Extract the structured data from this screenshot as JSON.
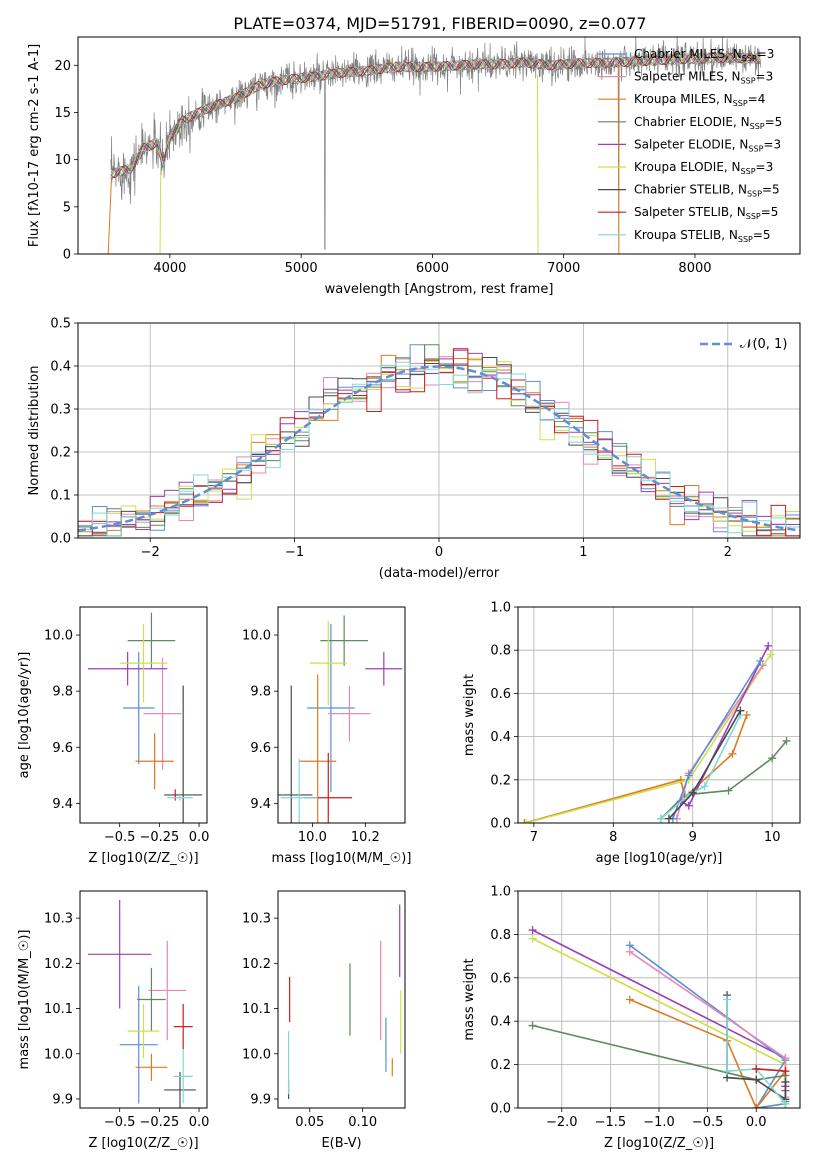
{
  "figure": {
    "title": "PLATE=0374, MJD=51791, FIBERID=0090, z=0.077"
  },
  "colors": {
    "Chabrier MILES": "#5b8fd6",
    "Salpeter MILES": "#e58ab8",
    "Kroupa MILES": "#e07a1f",
    "Chabrier ELODIE": "#5e8a5e",
    "Salpeter ELODIE": "#9b3fb5",
    "Kroupa ELODIE": "#cde04a",
    "Chabrier STELIB": "#4a4a4a",
    "Salpeter STELIB": "#cc1d1d",
    "Kroupa STELIB": "#7fd8d8"
  },
  "chart_data": [
    {
      "id": "spectrum",
      "type": "line",
      "xlabel": "wavelength [Angstrom, rest frame]",
      "ylabel": "Flux [f$_\\lambda$10$^{-17}$ erg cm$^{-2}$ s$^{-1}$ A$^{-1}$]",
      "xlim": [
        3300,
        8800
      ],
      "ylim": [
        0,
        23
      ],
      "xticks": [
        "4000",
        "5000",
        "6000",
        "7000",
        "8000"
      ],
      "yticks": [
        "0",
        "5",
        "10",
        "15",
        "20"
      ],
      "legend_position": "top-right",
      "legend": [
        {
          "label": "Chabrier MILES, N",
          "sub": "SSP",
          "eq": "=3",
          "color": "#5b8fd6"
        },
        {
          "label": "Salpeter MILES, N",
          "sub": "SSP",
          "eq": "=3",
          "color": "#e58ab8"
        },
        {
          "label": "Kroupa MILES, N",
          "sub": "SSP",
          "eq": "=4",
          "color": "#e07a1f"
        },
        {
          "label": "Chabrier ELODIE, N",
          "sub": "SSP",
          "eq": "=5",
          "color": "#5e8a5e"
        },
        {
          "label": "Salpeter ELODIE, N",
          "sub": "SSP",
          "eq": "=3",
          "color": "#9b3fb5"
        },
        {
          "label": "Kroupa ELODIE, N",
          "sub": "SSP",
          "eq": "=3",
          "color": "#cde04a"
        },
        {
          "label": "Chabrier STELIB, N",
          "sub": "SSP",
          "eq": "=5",
          "color": "#4a4a4a"
        },
        {
          "label": "Salpeter STELIB, N",
          "sub": "SSP",
          "eq": "=5",
          "color": "#cc1d1d"
        },
        {
          "label": "Kroupa STELIB, N",
          "sub": "SSP",
          "eq": "=5",
          "color": "#7fd8d8"
        }
      ],
      "data_color": "#808080",
      "data_range": [
        3550,
        8500
      ],
      "continuum": [
        [
          3550,
          8.5
        ],
        [
          3700,
          9.0
        ],
        [
          3800,
          11.2
        ],
        [
          3900,
          11.8
        ],
        [
          3950,
          9.5
        ],
        [
          4000,
          12.5
        ],
        [
          4100,
          14.2
        ],
        [
          4300,
          15.5
        ],
        [
          4500,
          16.5
        ],
        [
          4700,
          18.0
        ],
        [
          4900,
          18.5
        ],
        [
          5100,
          18.8
        ],
        [
          5300,
          19.2
        ],
        [
          5500,
          19.4
        ],
        [
          5700,
          19.8
        ],
        [
          5900,
          19.8
        ],
        [
          6100,
          19.9
        ],
        [
          6300,
          20.1
        ],
        [
          6500,
          20.1
        ],
        [
          6700,
          20.3
        ],
        [
          6900,
          20.0
        ],
        [
          7100,
          20.2
        ],
        [
          7400,
          20.3
        ],
        [
          7800,
          20.6
        ],
        [
          8200,
          20.8
        ],
        [
          8500,
          20.7
        ]
      ],
      "spikes": [
        [
          5180,
          0.5
        ],
        [
          7420,
          0.5
        ]
      ]
    },
    {
      "id": "residuals",
      "type": "line",
      "xlabel": "(data-model)/error",
      "ylabel": "Normed distribution",
      "xlim": [
        -2.5,
        2.5
      ],
      "ylim": [
        0,
        0.5
      ],
      "xticks": [
        "−2",
        "−1",
        "0",
        "1",
        "2"
      ],
      "yticks": [
        "0.0",
        "0.1",
        "0.2",
        "0.3",
        "0.4",
        "0.5"
      ],
      "legend_label": "$\\mathcal{N}(0,1)$",
      "legend_position": "top-right",
      "grid": true,
      "gaussian_color": "#5b8fd6",
      "bins": {
        "start": -2.5,
        "width": 0.1,
        "count": 50
      }
    },
    {
      "id": "age-vs-z",
      "type": "scatter",
      "xlabel": "Z [log$_{10}$($Z/Z_\\odot$)]",
      "ylabel": "age  [log$_{10}$($age/yr$)]",
      "xlim": [
        -0.75,
        0.05
      ],
      "ylim": [
        9.33,
        10.1
      ],
      "xticks": [
        "−0.5",
        "−0.25",
        "0.0"
      ],
      "xtick_values": [
        -0.5,
        -0.25,
        0.0
      ],
      "ytick_values": [
        9.4,
        9.6,
        9.8,
        10.0
      ],
      "yticks": [
        "9.4",
        "9.6",
        "9.8",
        "10.0"
      ],
      "points": [
        {
          "model": "Chabrier MILES",
          "x": -0.38,
          "xerr": 0.1,
          "y": 9.74,
          "yerr": 0.2
        },
        {
          "model": "Salpeter MILES",
          "x": -0.23,
          "xerr": 0.12,
          "y": 9.72,
          "yerr": 0.2
        },
        {
          "model": "Kroupa MILES",
          "x": -0.28,
          "xerr": 0.12,
          "y": 9.55,
          "yerr": 0.1
        },
        {
          "model": "Chabrier ELODIE",
          "x": -0.3,
          "xerr": 0.15,
          "y": 9.98,
          "yerr": 0.1
        },
        {
          "model": "Salpeter ELODIE",
          "x": -0.45,
          "xerr": 0.25,
          "y": 9.88,
          "yerr": 0.06
        },
        {
          "model": "Kroupa ELODIE",
          "x": -0.35,
          "xerr": 0.15,
          "y": 9.9,
          "yerr": 0.14
        },
        {
          "model": "Chabrier STELIB",
          "x": -0.1,
          "xerr": 0.12,
          "y": 9.43,
          "yerr": 0.39
        },
        {
          "model": "Salpeter STELIB",
          "x": -0.15,
          "xerr": 0.01,
          "y": 9.43,
          "yerr": 0.02
        },
        {
          "model": "Kroupa STELIB",
          "x": -0.12,
          "xerr": 0.08,
          "y": 9.42,
          "yerr": 0.01
        }
      ]
    },
    {
      "id": "age-vs-mass",
      "type": "scatter",
      "xlabel": "mass [log$_{10}$($M/M_\\odot$)]",
      "ylabel": "",
      "xlim": [
        9.87,
        10.35
      ],
      "ylim": [
        9.33,
        10.1
      ],
      "xticks": [
        "10.0",
        "10.2"
      ],
      "xtick_values": [
        10.0,
        10.2
      ],
      "ytick_values": [
        9.4,
        9.6,
        9.8,
        10.0
      ],
      "yticks": [
        "9.4",
        "9.6",
        "9.8",
        "10.0"
      ],
      "points": [
        {
          "model": "Chabrier MILES",
          "x": 10.07,
          "xerr": 0.09,
          "y": 9.74,
          "yerr": 0.3
        },
        {
          "model": "Salpeter MILES",
          "x": 10.14,
          "xerr": 0.08,
          "y": 9.72,
          "yerr": 0.1
        },
        {
          "model": "Kroupa MILES",
          "x": 10.02,
          "xerr": 0.07,
          "y": 9.55,
          "yerr": 0.31
        },
        {
          "model": "Chabrier ELODIE",
          "x": 10.12,
          "xerr": 0.09,
          "y": 9.98,
          "yerr": 0.09
        },
        {
          "model": "Salpeter ELODIE",
          "x": 10.27,
          "xerr": 0.07,
          "y": 9.88,
          "yerr": 0.06
        },
        {
          "model": "Kroupa ELODIE",
          "x": 10.06,
          "xerr": 0.07,
          "y": 9.9,
          "yerr": 0.15
        },
        {
          "model": "Chabrier STELIB",
          "x": 9.92,
          "xerr": 0.08,
          "y": 9.43,
          "yerr": 0.39
        },
        {
          "model": "Salpeter STELIB",
          "x": 10.06,
          "xerr": 0.09,
          "y": 9.42,
          "yerr": 0.16
        },
        {
          "model": "Kroupa STELIB",
          "x": 9.95,
          "xerr": 0.07,
          "y": 9.42,
          "yerr": 0.14
        }
      ]
    },
    {
      "id": "massweight-vs-age",
      "type": "line",
      "xlabel": "age  [log$_{10}$($age/yr$)]",
      "ylabel": "mass weight",
      "xlim": [
        6.8,
        10.35
      ],
      "ylim": [
        0,
        1
      ],
      "grid": true,
      "xticks": [
        "7",
        "8",
        "9",
        "10"
      ],
      "xtick_values": [
        7,
        8,
        9,
        10
      ],
      "ytick_values": [
        0.0,
        0.2,
        0.4,
        0.6,
        0.8,
        1.0
      ],
      "yticks": [
        "0.0",
        "0.2",
        "0.4",
        "0.6",
        "0.8",
        "1.0"
      ],
      "series": [
        {
          "model": "Kroupa MILES",
          "points": [
            [
              6.88,
              0.0
            ],
            [
              8.85,
              0.2
            ],
            [
              8.9,
              0.12
            ],
            [
              9.5,
              0.32
            ],
            [
              9.68,
              0.5
            ]
          ]
        },
        {
          "model": "Chabrier ELODIE",
          "points": [
            [
              8.6,
              0.02
            ],
            [
              8.9,
              0.13
            ],
            [
              9.45,
              0.15
            ],
            [
              10.0,
              0.3
            ],
            [
              10.18,
              0.38
            ]
          ]
        },
        {
          "model": "Kroupa ELODIE",
          "points": [
            [
              6.9,
              0.0
            ],
            [
              8.95,
              0.2
            ],
            [
              9.98,
              0.78
            ]
          ]
        },
        {
          "model": "Salpeter MILES",
          "points": [
            [
              8.8,
              0.02
            ],
            [
              8.95,
              0.23
            ],
            [
              9.88,
              0.73
            ]
          ]
        },
        {
          "model": "Salpeter ELODIE",
          "points": [
            [
              8.85,
              0.1
            ],
            [
              8.95,
              0.08
            ],
            [
              9.95,
              0.82
            ]
          ]
        },
        {
          "model": "Chabrier MILES",
          "points": [
            [
              8.75,
              0.02
            ],
            [
              8.95,
              0.22
            ],
            [
              9.85,
              0.75
            ]
          ]
        },
        {
          "model": "Kroupa STELIB",
          "points": [
            [
              8.6,
              0.02
            ],
            [
              8.95,
              0.13
            ],
            [
              9.15,
              0.17
            ],
            [
              9.6,
              0.5
            ]
          ]
        },
        {
          "model": "Chabrier STELIB",
          "points": [
            [
              8.7,
              0.02
            ],
            [
              9.0,
              0.14
            ],
            [
              9.6,
              0.52
            ]
          ]
        }
      ]
    },
    {
      "id": "mass-vs-z",
      "type": "scatter",
      "xlabel": "Z [log$_{10}$($Z/Z_\\odot$)]",
      "ylabel": "mass [log$_{10}$($M/M_\\odot$)]",
      "xlim": [
        -0.75,
        0.05
      ],
      "ylim": [
        9.88,
        10.36
      ],
      "xticks": [
        "−0.5",
        "−0.25",
        "0.0"
      ],
      "xtick_values": [
        -0.5,
        -0.25,
        0.0
      ],
      "ytick_values": [
        9.9,
        10.0,
        10.1,
        10.2,
        10.3
      ],
      "yticks": [
        "9.9",
        "10.0",
        "10.1",
        "10.2",
        "10.3"
      ],
      "points": [
        {
          "model": "Chabrier MILES",
          "x": -0.38,
          "xerr": 0.12,
          "y": 10.02,
          "yerr": 0.13
        },
        {
          "model": "Salpeter MILES",
          "x": -0.2,
          "xerr": 0.12,
          "y": 10.14,
          "yerr": 0.11
        },
        {
          "model": "Kroupa MILES",
          "x": -0.3,
          "xerr": 0.1,
          "y": 9.97,
          "yerr": 0.03
        },
        {
          "model": "Chabrier ELODIE",
          "x": -0.3,
          "xerr": 0.09,
          "y": 10.12,
          "yerr": 0.07
        },
        {
          "model": "Salpeter ELODIE",
          "x": -0.5,
          "xerr": 0.2,
          "y": 10.22,
          "yerr": 0.12
        },
        {
          "model": "Kroupa ELODIE",
          "x": -0.35,
          "xerr": 0.1,
          "y": 10.05,
          "yerr": 0.06
        },
        {
          "model": "Chabrier STELIB",
          "x": -0.12,
          "xerr": 0.1,
          "y": 9.92,
          "yerr": 0.04
        },
        {
          "model": "Salpeter STELIB",
          "x": -0.1,
          "xerr": 0.06,
          "y": 10.06,
          "yerr": 0.05
        },
        {
          "model": "Kroupa STELIB",
          "x": -0.1,
          "xerr": 0.06,
          "y": 9.95,
          "yerr": 0.06
        }
      ]
    },
    {
      "id": "mass-vs-ebv",
      "type": "scatter",
      "xlabel": "E(B-V)",
      "ylabel": "",
      "xlim": [
        0.02,
        0.14
      ],
      "ylim": [
        9.88,
        10.36
      ],
      "xticks": [
        "0.05",
        "0.10"
      ],
      "xtick_values": [
        0.05,
        0.1
      ],
      "ytick_values": [
        9.9,
        10.0,
        10.1,
        10.2,
        10.3
      ],
      "yticks": [
        "9.9",
        "10.0",
        "10.1",
        "10.2",
        "10.3"
      ],
      "points": [
        {
          "model": "Chabrier MILES",
          "x": 0.122,
          "y": 10.02,
          "yerr": 0.06
        },
        {
          "model": "Salpeter MILES",
          "x": 0.117,
          "y": 10.14,
          "yerr": 0.11
        },
        {
          "model": "Kroupa MILES",
          "x": 0.128,
          "y": 9.97,
          "yerr": 0.02
        },
        {
          "model": "Chabrier ELODIE",
          "x": 0.088,
          "y": 10.12,
          "yerr": 0.08
        },
        {
          "model": "Salpeter ELODIE",
          "x": 0.135,
          "y": 10.25,
          "yerr": 0.08
        },
        {
          "model": "Kroupa ELODIE",
          "x": 0.136,
          "y": 10.07,
          "yerr": 0.07
        },
        {
          "model": "Chabrier STELIB",
          "x": 0.03,
          "y": 9.92,
          "yerr": 0.02
        },
        {
          "model": "Salpeter STELIB",
          "x": 0.031,
          "y": 10.12,
          "yerr": 0.05
        },
        {
          "model": "Kroupa STELIB",
          "x": 0.03,
          "y": 9.98,
          "yerr": 0.07
        }
      ]
    },
    {
      "id": "massweight-vs-z",
      "type": "line",
      "xlabel": "Z [log$_{10}$($Z/Z_\\odot$)]",
      "ylabel": "mass weight",
      "xlim": [
        -2.45,
        0.45
      ],
      "ylim": [
        0,
        1
      ],
      "grid": true,
      "xticks": [
        "−2.0",
        "−1.5",
        "−1.0",
        "−0.5",
        "0.0"
      ],
      "xtick_values": [
        -2.0,
        -1.5,
        -1.0,
        -0.5,
        0.0
      ],
      "ytick_values": [
        0.0,
        0.2,
        0.4,
        0.6,
        0.8,
        1.0
      ],
      "yticks": [
        "0.0",
        "0.2",
        "0.4",
        "0.6",
        "0.8",
        "1.0"
      ],
      "series": [
        {
          "model": "Salpeter ELODIE",
          "points": [
            [
              -2.3,
              0.82
            ],
            [
              0.3,
              0.23
            ],
            [
              0.3,
              0.1
            ],
            [
              0.3,
              0.08
            ]
          ]
        },
        {
          "model": "Kroupa ELODIE",
          "points": [
            [
              -2.3,
              0.78
            ],
            [
              0.3,
              0.2
            ],
            [
              0.3,
              0.02
            ]
          ]
        },
        {
          "model": "Chabrier MILES",
          "points": [
            [
              -1.3,
              0.75
            ],
            [
              0.3,
              0.22
            ],
            [
              0.0,
              0.0
            ],
            [
              0.3,
              0.02
            ]
          ]
        },
        {
          "model": "Salpeter MILES",
          "points": [
            [
              -1.3,
              0.72
            ],
            [
              0.3,
              0.23
            ],
            [
              0.3,
              0.05
            ]
          ]
        },
        {
          "model": "Kroupa MILES",
          "points": [
            [
              -1.3,
              0.5
            ],
            [
              -0.3,
              0.31
            ],
            [
              0.0,
              0.0
            ],
            [
              0.3,
              0.17
            ],
            [
              0.3,
              0.02
            ]
          ]
        },
        {
          "model": "Chabrier ELODIE",
          "points": [
            [
              -2.3,
              0.38
            ],
            [
              0.0,
              0.13
            ],
            [
              0.3,
              0.15
            ],
            [
              0.3,
              0.03
            ]
          ]
        },
        {
          "model": "Chabrier STELIB",
          "points": [
            [
              -0.3,
              0.52
            ],
            [
              -0.3,
              0.14
            ],
            [
              0.0,
              0.13
            ],
            [
              0.3,
              0.04
            ],
            [
              0.3,
              0.12
            ]
          ]
        },
        {
          "model": "Kroupa STELIB",
          "points": [
            [
              -0.3,
              0.5
            ],
            [
              -0.3,
              0.17
            ],
            [
              0.0,
              0.18
            ],
            [
              0.3,
              0.02
            ]
          ]
        },
        {
          "model": "Salpeter STELIB",
          "points": [
            [
              0.3,
              0.17
            ],
            [
              0.0,
              0.18
            ]
          ]
        }
      ]
    }
  ]
}
